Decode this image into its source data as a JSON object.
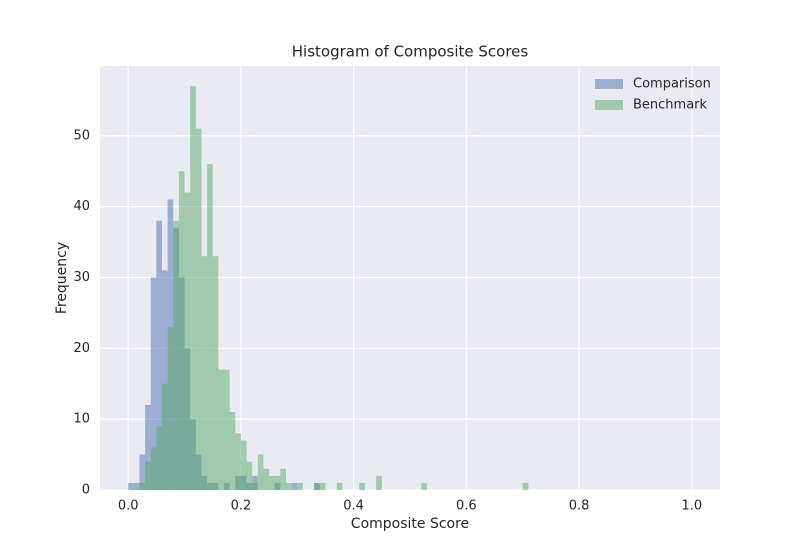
{
  "chart_data": {
    "type": "histogram",
    "title": "Histogram of Composite Scores",
    "x_label": "Composite Score",
    "y_label": "Frequency",
    "xlim": [
      -0.05,
      1.05
    ],
    "ylim": [
      0,
      59.85
    ],
    "xticks": [
      {
        "value": 0,
        "label": "0.0"
      },
      {
        "value": 0.2,
        "label": "0.2"
      },
      {
        "value": 0.4,
        "label": "0.4"
      },
      {
        "value": 0.6,
        "label": "0.6"
      },
      {
        "value": 0.8,
        "label": "0.8"
      },
      {
        "value": 1,
        "label": "1.0"
      }
    ],
    "yticks": [
      0,
      10,
      20,
      30,
      40,
      50
    ],
    "grid": true,
    "legend": "upper right",
    "series": [
      {
        "name": "Comparison",
        "color": "#4c72b0",
        "bins": [
          0.0,
          0.01,
          0.02,
          0.03,
          0.04,
          0.05,
          0.06,
          0.07,
          0.08,
          0.09,
          0.1,
          0.11,
          0.12,
          0.13,
          0.14,
          0.15,
          0.16,
          0.17,
          0.18,
          0.19,
          0.2,
          0.21,
          0.22,
          0.23,
          0.24,
          0.25,
          0.26,
          0.27,
          0.28,
          0.29,
          0.3,
          0.31,
          0.32,
          0.33,
          0.34,
          0.35
        ],
        "values": [
          1,
          1,
          5,
          12,
          30,
          38,
          31,
          41,
          37,
          30,
          20,
          10,
          5,
          2,
          1,
          1,
          0,
          1,
          0,
          2,
          2,
          1,
          2,
          0,
          0,
          0,
          1,
          0,
          0,
          1,
          0,
          0,
          0,
          1,
          0
        ]
      },
      {
        "name": "Benchmark",
        "color": "#55a868",
        "bins": [
          0.02,
          0.03,
          0.04,
          0.05,
          0.06,
          0.07,
          0.08,
          0.09,
          0.1,
          0.11,
          0.12,
          0.13,
          0.14,
          0.15,
          0.16,
          0.17,
          0.18,
          0.19,
          0.2,
          0.21,
          0.22,
          0.23,
          0.24,
          0.25,
          0.26,
          0.27,
          0.28,
          0.29,
          0.3,
          0.31,
          0.32,
          0.33,
          0.34,
          0.35,
          0.36,
          0.37,
          0.38,
          0.39,
          0.4,
          0.41,
          0.42,
          0.43,
          0.44,
          0.45,
          0.46,
          0.47,
          0.48,
          0.49,
          0.5,
          0.51,
          0.52,
          0.53,
          0.54,
          0.55,
          0.56,
          0.57,
          0.58,
          0.59,
          0.6,
          0.61,
          0.62,
          0.63,
          0.64,
          0.65,
          0.66,
          0.67,
          0.68,
          0.69,
          0.7,
          0.71
        ],
        "values": [
          1,
          4,
          6,
          9,
          15,
          23,
          38,
          45,
          42,
          57,
          51,
          33,
          46,
          33,
          17,
          17,
          11,
          8,
          7,
          4,
          1,
          5,
          3,
          2,
          2,
          3,
          1,
          0,
          1,
          0,
          0,
          1,
          1,
          0,
          0,
          1,
          0,
          0,
          0,
          1,
          0,
          0,
          2,
          0,
          0,
          0,
          0,
          0,
          0,
          0,
          1,
          0,
          0,
          0,
          0,
          0,
          0,
          0,
          0,
          0,
          0,
          0,
          0,
          0,
          0,
          0,
          0,
          0,
          1
        ]
      }
    ]
  }
}
